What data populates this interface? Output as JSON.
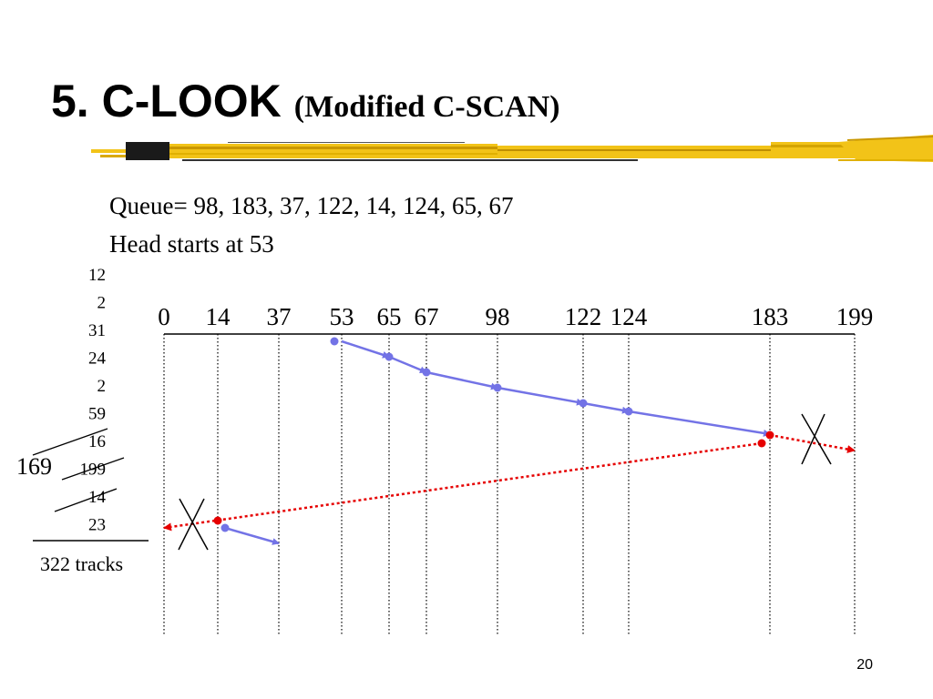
{
  "slide": {
    "title_main": "5. C-LOOK",
    "title_sub": "(Modified C-SCAN)",
    "queue_text": "Queue= 98, 183, 37, 122, 14, 124, 65, 67",
    "head_text": "Head starts at 53",
    "slide_number": "20"
  },
  "colors": {
    "service_path": "#7373e6",
    "return_path": "#e60000",
    "brush_yellow": "#f2c318",
    "brush_dark": "#1a1a1a"
  },
  "tracks": {
    "axis_labels": [
      "0",
      "14",
      "37",
      "53",
      "65",
      "67",
      "98",
      "122",
      "124",
      "183",
      "199"
    ],
    "axis_values": [
      0,
      14,
      37,
      53,
      65,
      67,
      98,
      122,
      124,
      183,
      199
    ]
  },
  "movements": {
    "list": [
      "12",
      "2",
      "31",
      "24",
      "2",
      "59",
      "16",
      "199",
      "14",
      "23"
    ],
    "struck": [
      false,
      false,
      false,
      false,
      false,
      false,
      true,
      true,
      true,
      false
    ],
    "replacement": "169",
    "total_label": "322 tracks"
  },
  "service_order": [
    53,
    65,
    67,
    98,
    122,
    124,
    183
  ],
  "return_sweep_from": 183,
  "return_sweep_to": 14,
  "final_move_to": 37
}
